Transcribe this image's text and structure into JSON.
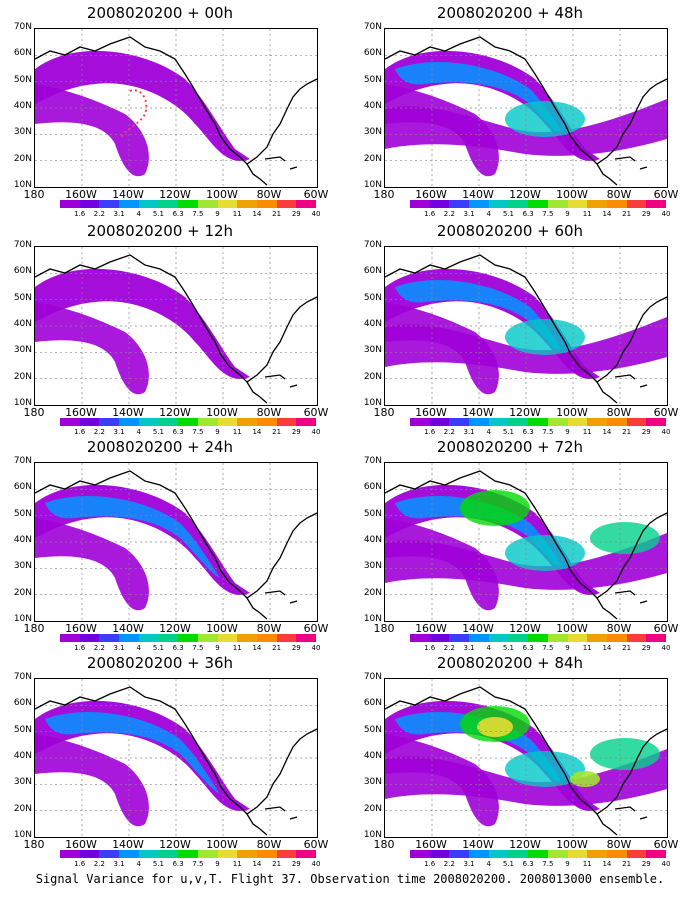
{
  "panels": [
    {
      "title": "2008020200 + 00h",
      "col": 0,
      "row": 0,
      "level": 0,
      "storm": true
    },
    {
      "title": "2008020200 + 48h",
      "col": 1,
      "row": 0,
      "level": 2,
      "storm": false
    },
    {
      "title": "2008020200 + 12h",
      "col": 0,
      "row": 1,
      "level": 0,
      "storm": false
    },
    {
      "title": "2008020200 + 60h",
      "col": 1,
      "row": 1,
      "level": 2,
      "storm": false
    },
    {
      "title": "2008020200 + 24h",
      "col": 0,
      "row": 2,
      "level": 1,
      "storm": false
    },
    {
      "title": "2008020200 + 72h",
      "col": 1,
      "row": 2,
      "level": 3,
      "storm": false
    },
    {
      "title": "2008020200 + 36h",
      "col": 0,
      "row": 3,
      "level": 1,
      "storm": false
    },
    {
      "title": "2008020200 + 84h",
      "col": 1,
      "row": 3,
      "level": 4,
      "storm": false
    }
  ],
  "lat_labels": [
    "70N",
    "60N",
    "50N",
    "40N",
    "30N",
    "20N",
    "10N"
  ],
  "lon_labels": [
    "180",
    "160W",
    "140W",
    "120W",
    "100W",
    "80W",
    "60W"
  ],
  "colorbar": {
    "labels": [
      "1.6",
      "2.2",
      "3.1",
      "4",
      "5.1",
      "6.3",
      "7.5",
      "9",
      "11",
      "14",
      "21",
      "29",
      "40"
    ],
    "colors": [
      "#a000d8",
      "#7200e0",
      "#3c3cff",
      "#0096ff",
      "#00c8c8",
      "#00d28c",
      "#00dc00",
      "#a0e632",
      "#e6dc32",
      "#f0a000",
      "#fa8c00",
      "#fa3c3c",
      "#f00082"
    ]
  },
  "footer": "Signal Variance for u,v,T. Flight 37. Observation time 2008020200. 2008013000 ensemble."
}
